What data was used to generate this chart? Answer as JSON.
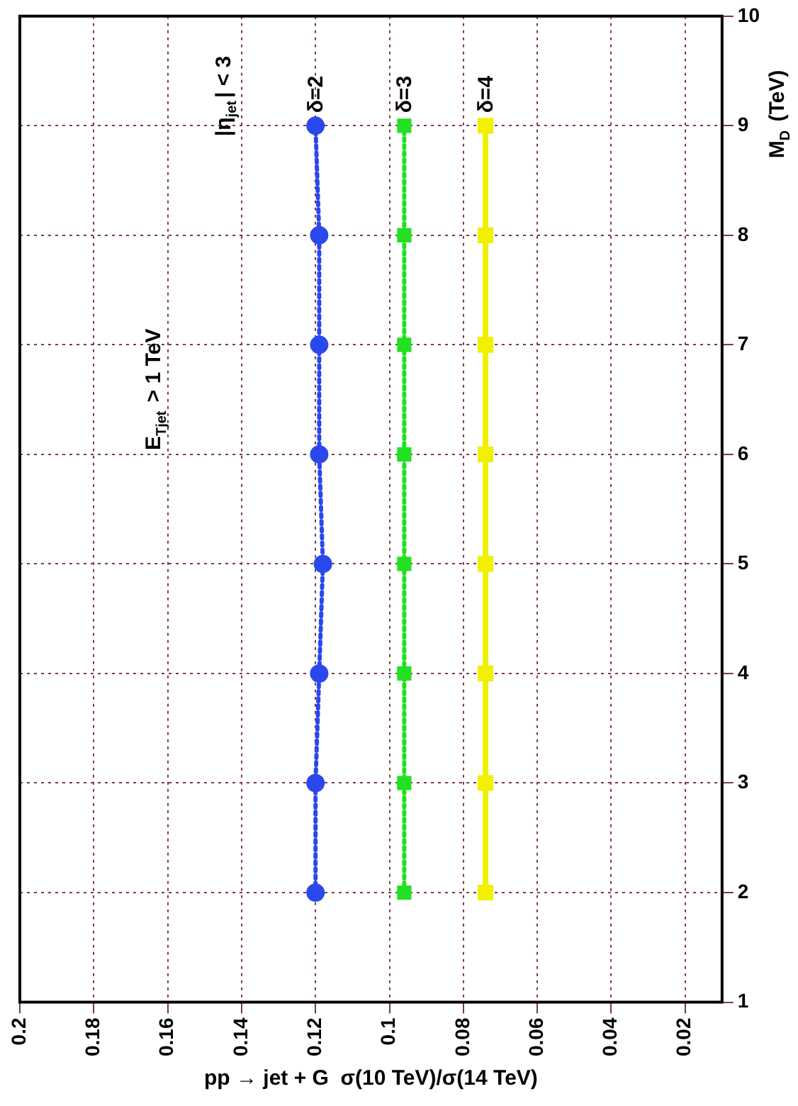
{
  "chart_data": {
    "type": "line",
    "xlabel": "pp → jet + G  σ(10 TeV)/σ(14 TeV)",
    "ylabel": "M$_{D}$ (TeV)",
    "series": [
      {
        "name": "δ=2",
        "color": "#2a48ec",
        "line_style": "dotted",
        "marker": "circle",
        "x": [
          0.12,
          0.12,
          0.119,
          0.118,
          0.119,
          0.119,
          0.119,
          0.12
        ],
        "values": [
          2,
          3,
          4,
          5,
          6,
          7,
          8,
          9
        ]
      },
      {
        "name": "δ=3",
        "color": "#22e022",
        "line_style": "dotted",
        "marker": "square",
        "x": [
          0.096,
          0.096,
          0.096,
          0.096,
          0.096,
          0.096,
          0.096,
          0.096
        ],
        "values": [
          2,
          3,
          4,
          5,
          6,
          7,
          8,
          9
        ]
      },
      {
        "name": "δ=4",
        "color": "#f0f000",
        "line_style": "solid",
        "marker": "square",
        "x": [
          0.074,
          0.074,
          0.074,
          0.074,
          0.074,
          0.074,
          0.074,
          0.074
        ],
        "values": [
          2,
          3,
          4,
          5,
          6,
          7,
          8,
          9
        ]
      }
    ],
    "xlim": [
      0.2,
      0.01
    ],
    "xticks": [
      0.2,
      0.18,
      0.16,
      0.14,
      0.12,
      0.1,
      0.08,
      0.06,
      0.04,
      0.02
    ],
    "ylim": [
      1,
      10
    ],
    "yticks": [
      1,
      2,
      3,
      4,
      5,
      6,
      7,
      8,
      9,
      10
    ],
    "grid": true,
    "annotations": [
      "E$_{Tjet}$ > 1 TeV",
      "|η$_{jet}$| < 3"
    ]
  }
}
